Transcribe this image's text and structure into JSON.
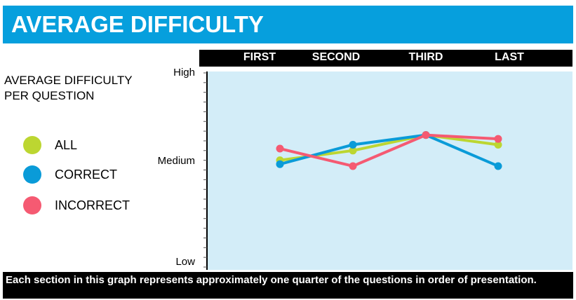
{
  "header": {
    "title": "AVERAGE DIFFICULTY"
  },
  "sections": [
    "FIRST",
    "SECOND",
    "THIRD",
    "LAST"
  ],
  "legend": {
    "heading": "AVERAGE DIFFICULTY PER QUESTION",
    "items": [
      {
        "label": "ALL",
        "color": "#bcd631"
      },
      {
        "label": "CORRECT",
        "color": "#0a9bd8"
      },
      {
        "label": "INCORRECT",
        "color": "#f55a72"
      }
    ]
  },
  "y_labels": {
    "high": "High",
    "medium": "Medium",
    "low": "Low"
  },
  "footer": {
    "note": "Each section in this graph represents approximately one quarter of the questions in order of presentation."
  },
  "chart_data": {
    "type": "line",
    "categories": [
      "FIRST",
      "SECOND",
      "THIRD",
      "LAST"
    ],
    "ylim": [
      0,
      1
    ],
    "y_ticks": {
      "High": 1,
      "Medium": 0.5,
      "Low": 0
    },
    "plot_background": "#d3edf8",
    "series": [
      {
        "name": "ALL",
        "color": "#bcd631",
        "values": [
          0.55,
          0.6,
          0.68,
          0.63
        ]
      },
      {
        "name": "CORRECT",
        "color": "#0a9bd8",
        "values": [
          0.53,
          0.63,
          0.68,
          0.52
        ]
      },
      {
        "name": "INCORRECT",
        "color": "#f55a72",
        "values": [
          0.61,
          0.52,
          0.68,
          0.66
        ]
      }
    ]
  }
}
